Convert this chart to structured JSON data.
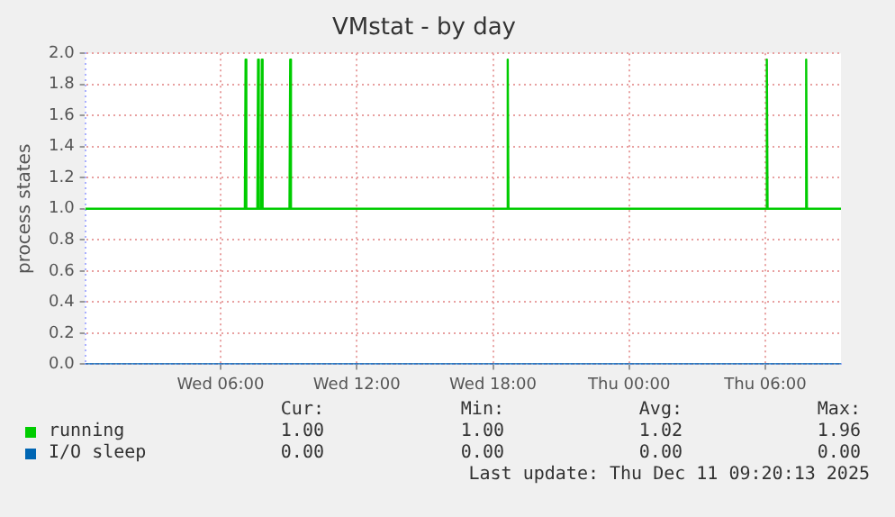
{
  "chart_data": {
    "type": "line",
    "title": "VMstat - by day",
    "ylabel": "process states",
    "xlim": [
      "2025-12-10T00:02",
      "2025-12-11T09:20"
    ],
    "xticks": [
      {
        "value": "2025-12-10T06:00",
        "label": "Wed 06:00"
      },
      {
        "value": "2025-12-10T12:00",
        "label": "Wed 12:00"
      },
      {
        "value": "2025-12-10T18:00",
        "label": "Wed 18:00"
      },
      {
        "value": "2025-12-11T00:00",
        "label": "Thu 00:00"
      },
      {
        "value": "2025-12-11T06:00",
        "label": "Thu 06:00"
      }
    ],
    "ylim": [
      0,
      2
    ],
    "yticks": [
      {
        "value": 0,
        "label": "0.0"
      },
      {
        "value": 0.2,
        "label": "0.2"
      },
      {
        "value": 0.4,
        "label": "0.4"
      },
      {
        "value": 0.6,
        "label": "0.6"
      },
      {
        "value": 0.8,
        "label": "0.8"
      },
      {
        "value": 1,
        "label": "1.0"
      },
      {
        "value": 1.2,
        "label": "1.2"
      },
      {
        "value": 1.4,
        "label": "1.4"
      },
      {
        "value": 1.6,
        "label": "1.6"
      },
      {
        "value": 1.8,
        "label": "1.8"
      },
      {
        "value": 2,
        "label": "2.0"
      }
    ],
    "grid": true,
    "legend": "bottom",
    "marker": "none",
    "line_style": "solid",
    "series": [
      {
        "name": "running",
        "color": "#00cc00",
        "x": [
          "2025-12-10T00:02",
          "2025-12-10T07:04",
          "2025-12-10T07:06",
          "2025-12-10T07:08",
          "2025-12-10T07:37",
          "2025-12-10T07:39",
          "2025-12-10T07:41",
          "2025-12-10T07:47",
          "2025-12-10T07:49",
          "2025-12-10T07:51",
          "2025-12-10T09:02",
          "2025-12-10T09:04",
          "2025-12-10T09:06",
          "2025-12-10T18:37",
          "2025-12-10T18:39",
          "2025-12-10T18:41",
          "2025-12-11T06:02",
          "2025-12-11T06:04",
          "2025-12-11T06:06",
          "2025-12-11T07:46",
          "2025-12-11T07:48",
          "2025-12-11T07:50",
          "2025-12-11T09:20"
        ],
        "values": [
          1,
          1,
          1.96,
          1,
          1,
          1.96,
          1,
          1,
          1.96,
          1,
          1,
          1.96,
          1,
          1,
          1.96,
          1,
          1,
          1.96,
          1,
          1,
          1.96,
          1,
          1
        ]
      },
      {
        "name": "I/O sleep",
        "color": "#0066b3",
        "x": [
          "2025-12-10T00:02",
          "2025-12-11T09:20"
        ],
        "values": [
          0,
          0
        ]
      }
    ],
    "annotations": [
      "Cur:",
      "Min:",
      "Avg:",
      "Max:",
      "1.00",
      "1.00",
      "1.02",
      "1.96",
      "0.00",
      "0.00",
      "0.00",
      "0.00",
      "Last update: Thu Dec 11 09:20:13 2025"
    ]
  }
}
